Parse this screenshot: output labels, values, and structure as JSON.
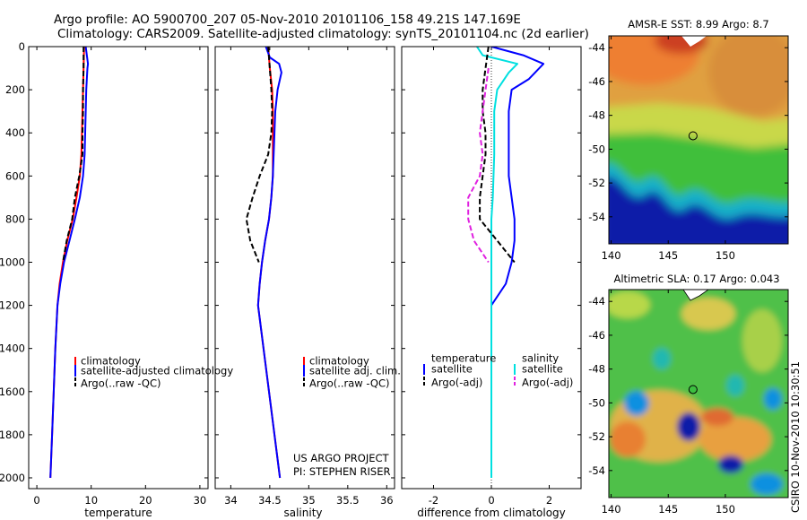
{
  "title_line1": "Argo profile: AO 5900700_207 05-Nov-2010 20101106_158 49.21S 147.169E",
  "title_line2": "Climatology: CARS2009. Satellite-adjusted climatology: synTS_20101104.nc (2d earlier)",
  "credit": "CSIRO 10-Nov-2010 10:30:51",
  "project_line1": "US ARGO PROJECT",
  "project_line2": "PI: STEPHEN RISER",
  "colors": {
    "climatology": "#ff0000",
    "satellite": "#0000ff",
    "argo": "#000000",
    "sal_sat": "#00e0e0",
    "sal_argo": "#e020e0"
  },
  "chart_data": [
    {
      "type": "line",
      "name": "temperature-profile",
      "xlabel": "temperature",
      "xticks": [
        0,
        10,
        20,
        30
      ],
      "xlim": [
        -1.5,
        31.5
      ],
      "ylim": [
        0,
        2050
      ],
      "yticks": [
        0,
        200,
        400,
        600,
        800,
        1000,
        1200,
        1400,
        1600,
        1800,
        2000
      ],
      "y_reversed": true,
      "legend": [
        "climatology",
        "satellite-adjusted climatology",
        "Argo(..raw -QC)"
      ],
      "series": [
        {
          "name": "climatology",
          "color": "#ff0000",
          "points": [
            [
              8.7,
              0
            ],
            [
              8.6,
              100
            ],
            [
              8.5,
              200
            ],
            [
              8.4,
              300
            ],
            [
              8.3,
              400
            ],
            [
              8.2,
              500
            ],
            [
              7.9,
              600
            ],
            [
              7.3,
              700
            ],
            [
              6.6,
              800
            ],
            [
              5.6,
              900
            ],
            [
              4.8,
              1000
            ],
            [
              4.2,
              1100
            ],
            [
              3.8,
              1200
            ],
            [
              3.4,
              1400
            ],
            [
              3.1,
              1600
            ],
            [
              2.8,
              1800
            ],
            [
              2.5,
              2000
            ]
          ]
        },
        {
          "name": "satellite-adjusted climatology",
          "color": "#0000ff",
          "points": [
            [
              9.0,
              0
            ],
            [
              9.4,
              80
            ],
            [
              9.3,
              100
            ],
            [
              9.1,
              200
            ],
            [
              9.0,
              300
            ],
            [
              8.9,
              400
            ],
            [
              8.8,
              500
            ],
            [
              8.5,
              600
            ],
            [
              7.9,
              700
            ],
            [
              7.0,
              800
            ],
            [
              6.0,
              900
            ],
            [
              5.0,
              1000
            ],
            [
              4.3,
              1100
            ],
            [
              3.8,
              1200
            ],
            [
              3.4,
              1400
            ],
            [
              3.1,
              1600
            ],
            [
              2.8,
              1800
            ],
            [
              2.5,
              2000
            ]
          ]
        },
        {
          "name": "Argo(..raw -QC)",
          "color": "#000000",
          "dashed": true,
          "points": [
            [
              8.6,
              0
            ],
            [
              8.6,
              100
            ],
            [
              8.5,
              200
            ],
            [
              8.5,
              300
            ],
            [
              8.4,
              400
            ],
            [
              8.4,
              500
            ],
            [
              7.8,
              600
            ],
            [
              7.0,
              700
            ],
            [
              6.5,
              800
            ],
            [
              5.5,
              900
            ],
            [
              4.8,
              1000
            ]
          ]
        }
      ]
    },
    {
      "type": "line",
      "name": "salinity-profile",
      "xlabel": "salinity",
      "xticks": [
        34,
        34.5,
        35,
        35.5,
        36
      ],
      "xlim": [
        33.8,
        36.1
      ],
      "ylim": [
        0,
        2050
      ],
      "y_reversed": true,
      "legend": [
        "climatology",
        "satellite adj. clim.",
        "Argo(..raw -QC)"
      ],
      "series": [
        {
          "name": "climatology",
          "color": "#ff0000",
          "points": [
            [
              34.48,
              0
            ],
            [
              34.5,
              100
            ],
            [
              34.53,
              200
            ],
            [
              34.54,
              300
            ],
            [
              34.54,
              400
            ],
            [
              34.54,
              500
            ],
            [
              34.54,
              600
            ],
            [
              34.52,
              700
            ],
            [
              34.49,
              800
            ],
            [
              34.44,
              900
            ],
            [
              34.4,
              1000
            ],
            [
              34.37,
              1100
            ],
            [
              34.35,
              1200
            ],
            [
              34.42,
              1400
            ],
            [
              34.49,
              1600
            ],
            [
              34.56,
              1800
            ],
            [
              34.63,
              2000
            ]
          ]
        },
        {
          "name": "satellite adj. clim.",
          "color": "#0000ff",
          "points": [
            [
              34.45,
              0
            ],
            [
              34.5,
              50
            ],
            [
              34.62,
              80
            ],
            [
              34.65,
              120
            ],
            [
              34.6,
              200
            ],
            [
              34.57,
              300
            ],
            [
              34.56,
              400
            ],
            [
              34.55,
              500
            ],
            [
              34.54,
              600
            ],
            [
              34.52,
              700
            ],
            [
              34.49,
              800
            ],
            [
              34.44,
              900
            ],
            [
              34.4,
              1000
            ],
            [
              34.37,
              1100
            ],
            [
              34.35,
              1200
            ],
            [
              34.42,
              1400
            ],
            [
              34.49,
              1600
            ],
            [
              34.56,
              1800
            ],
            [
              34.63,
              2000
            ]
          ]
        },
        {
          "name": "Argo(..raw -QC)",
          "color": "#000000",
          "dashed": true,
          "points": [
            [
              34.48,
              0
            ],
            [
              34.5,
              100
            ],
            [
              34.52,
              200
            ],
            [
              34.53,
              300
            ],
            [
              34.52,
              400
            ],
            [
              34.48,
              500
            ],
            [
              34.37,
              600
            ],
            [
              34.28,
              700
            ],
            [
              34.2,
              800
            ],
            [
              34.25,
              900
            ],
            [
              34.36,
              1000
            ]
          ]
        }
      ]
    },
    {
      "type": "line",
      "name": "difference-profile",
      "xlabel": "difference from climatology",
      "xticks": [
        -2,
        0,
        2
      ],
      "xlim": [
        -3.1,
        3.1
      ],
      "ylim": [
        0,
        2050
      ],
      "y_reversed": true,
      "legend_temperature": [
        "temperature",
        "satellite",
        "Argo(-adj)"
      ],
      "legend_salinity": [
        "salinity",
        "satellite",
        "Argo(-adj)"
      ],
      "series": [
        {
          "name": "temperature satellite",
          "color": "#0000ff",
          "points": [
            [
              0,
              0
            ],
            [
              1.1,
              40
            ],
            [
              1.8,
              80
            ],
            [
              1.3,
              150
            ],
            [
              0.7,
              200
            ],
            [
              0.6,
              300
            ],
            [
              0.6,
              400
            ],
            [
              0.6,
              500
            ],
            [
              0.6,
              600
            ],
            [
              0.7,
              700
            ],
            [
              0.8,
              800
            ],
            [
              0.8,
              900
            ],
            [
              0.7,
              1000
            ],
            [
              0.5,
              1100
            ],
            [
              0,
              1200
            ],
            [
              0,
              2000
            ]
          ]
        },
        {
          "name": "salinity satellite",
          "color": "#00e0e0",
          "points": [
            [
              -0.5,
              0
            ],
            [
              -0.3,
              40
            ],
            [
              0.9,
              80
            ],
            [
              0.6,
              120
            ],
            [
              0.2,
              200
            ],
            [
              0.1,
              300
            ],
            [
              0.1,
              400
            ],
            [
              0.1,
              500
            ],
            [
              0.05,
              700
            ],
            [
              0,
              800
            ],
            [
              0,
              2000
            ]
          ]
        },
        {
          "name": "temperature Argo(-adj)",
          "color": "#000000",
          "dashed": true,
          "points": [
            [
              -0.1,
              0
            ],
            [
              -0.2,
              100
            ],
            [
              -0.3,
              200
            ],
            [
              -0.3,
              300
            ],
            [
              -0.2,
              400
            ],
            [
              -0.2,
              500
            ],
            [
              -0.3,
              600
            ],
            [
              -0.4,
              700
            ],
            [
              -0.4,
              800
            ],
            [
              0.2,
              900
            ],
            [
              0.8,
              1000
            ]
          ]
        },
        {
          "name": "salinity Argo(-adj)",
          "color": "#e020e0",
          "dashed": true,
          "points": [
            [
              -0.1,
              100
            ],
            [
              -0.2,
              200
            ],
            [
              -0.3,
              300
            ],
            [
              -0.4,
              400
            ],
            [
              -0.3,
              500
            ],
            [
              -0.4,
              600
            ],
            [
              -0.8,
              700
            ],
            [
              -0.8,
              800
            ],
            [
              -0.6,
              900
            ],
            [
              -0.1,
              1000
            ]
          ]
        }
      ]
    },
    {
      "type": "heatmap",
      "name": "sst-map",
      "title": "AMSR-E SST: 8.99 Argo: 8.7",
      "xticks": [
        140,
        145,
        150
      ],
      "yticks": [
        -44,
        -46,
        -48,
        -50,
        -52,
        -54
      ],
      "xlim": [
        139.8,
        155.5
      ],
      "ylim": [
        -55.6,
        -43.3
      ],
      "marker": {
        "lon": 147.17,
        "lat": -49.21,
        "value": 8.7
      }
    },
    {
      "type": "heatmap",
      "name": "sla-map",
      "title": "Altimetric SLA: 0.17 Argo: 0.043",
      "xticks": [
        140,
        145,
        150
      ],
      "yticks": [
        -44,
        -46,
        -48,
        -50,
        -52,
        -54
      ],
      "xlim": [
        139.8,
        155.5
      ],
      "ylim": [
        -55.6,
        -43.3
      ],
      "marker": {
        "lon": 147.17,
        "lat": -49.21,
        "value": 0.043
      }
    }
  ]
}
